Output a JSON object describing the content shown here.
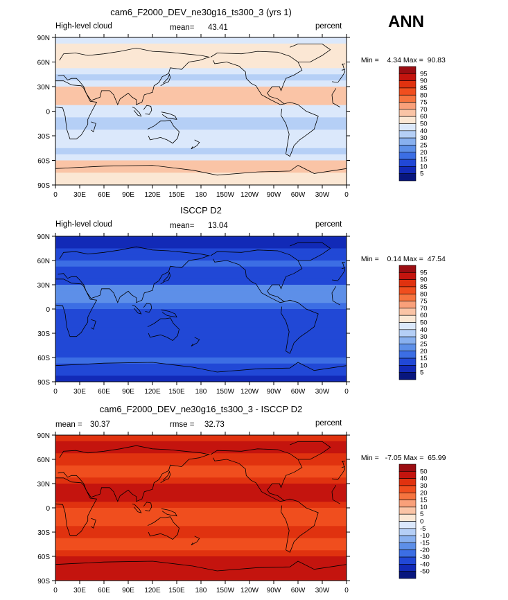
{
  "season": "ANN",
  "chart_data": [
    {
      "type": "heatmap",
      "title": "cam6_F2000_DEV_ne30g16_ts300_3 (yrs 1)",
      "left_label": "High-level cloud",
      "stat_label": "mean=",
      "stat_value": "43.41",
      "units": "percent",
      "min_label": "Min =",
      "min_value": "4.34",
      "max_label": "Max =",
      "max_value": "90.83",
      "x_ticks": [
        "0",
        "30E",
        "60E",
        "90E",
        "120E",
        "150E",
        "180",
        "150W",
        "120W",
        "90W",
        "60W",
        "30W",
        "0"
      ],
      "y_ticks": [
        "90N",
        "60N",
        "30N",
        "0",
        "30S",
        "60S",
        "90S"
      ],
      "xlim": [
        0,
        360
      ],
      "ylim": [
        -90,
        90
      ],
      "colorbar_levels": [
        "95",
        "90",
        "85",
        "80",
        "75",
        "70",
        "60",
        "50",
        "40",
        "30",
        "25",
        "20",
        "15",
        "10",
        "5"
      ],
      "colorbar_colors": [
        "#9b0d12",
        "#c4140e",
        "#e0320f",
        "#f04e1e",
        "#f6743f",
        "#f9a07a",
        "#fac4a6",
        "#fbe7d4",
        "#dbe8fb",
        "#b5cff6",
        "#88b0ef",
        "#5d8fe8",
        "#3c6ee4",
        "#2148d6",
        "#122ab7",
        "#08167e"
      ],
      "zonal_band_values": [
        45,
        55,
        55,
        52,
        50,
        40,
        38,
        45,
        62,
        68,
        62,
        48,
        40,
        35,
        38,
        42,
        45,
        40,
        35,
        45,
        60,
        62,
        55,
        50
      ]
    },
    {
      "type": "heatmap",
      "title": "ISCCP D2",
      "left_label": "High-level cloud",
      "stat_label": "mean=",
      "stat_value": "13.04",
      "units": "percent",
      "min_label": "Min =",
      "min_value": "0.14",
      "max_label": "Max =",
      "max_value": "47.54",
      "x_ticks": [
        "0",
        "30E",
        "60E",
        "90E",
        "120E",
        "150E",
        "180",
        "150W",
        "120W",
        "90W",
        "60W",
        "30W",
        "0"
      ],
      "y_ticks": [
        "90N",
        "60N",
        "30N",
        "0",
        "30S",
        "60S",
        "90S"
      ],
      "xlim": [
        0,
        360
      ],
      "ylim": [
        -90,
        90
      ],
      "colorbar_levels": [
        "95",
        "90",
        "85",
        "80",
        "75",
        "70",
        "60",
        "50",
        "40",
        "30",
        "25",
        "20",
        "15",
        "10",
        "5"
      ],
      "colorbar_colors": [
        "#9b0d12",
        "#c4140e",
        "#e0320f",
        "#f04e1e",
        "#f6743f",
        "#f9a07a",
        "#fac4a6",
        "#fbe7d4",
        "#dbe8fb",
        "#b5cff6",
        "#88b0ef",
        "#5d8fe8",
        "#3c6ee4",
        "#2148d6",
        "#122ab7",
        "#08167e"
      ],
      "zonal_band_values": [
        5,
        8,
        12,
        14,
        16,
        14,
        12,
        14,
        20,
        24,
        20,
        16,
        12,
        10,
        10,
        12,
        14,
        12,
        10,
        12,
        16,
        14,
        10,
        6
      ]
    },
    {
      "type": "heatmap",
      "title": "cam6_F2000_DEV_ne30g16_ts300_3 - ISCCP D2",
      "left_label": "",
      "stat_label": "mean =",
      "stat_value": "30.37",
      "stat2_label": "rmse =",
      "stat2_value": "32.73",
      "units": "percent",
      "min_label": "Min =",
      "min_value": "-7.05",
      "max_label": "Max =",
      "max_value": "65.99",
      "x_ticks": [
        "0",
        "30E",
        "60E",
        "90E",
        "120E",
        "150E",
        "180",
        "150W",
        "120W",
        "90W",
        "60W",
        "30W",
        "0"
      ],
      "y_ticks": [
        "90N",
        "60N",
        "30N",
        "0",
        "30S",
        "60S",
        "90S"
      ],
      "xlim": [
        0,
        360
      ],
      "ylim": [
        -90,
        90
      ],
      "colorbar_levels": [
        "50",
        "40",
        "30",
        "20",
        "15",
        "10",
        "5",
        "0",
        "-5",
        "-10",
        "-15",
        "-20",
        "-30",
        "-40",
        "-50"
      ],
      "colorbar_colors": [
        "#9b0d12",
        "#c4140e",
        "#e0320f",
        "#f04e1e",
        "#f6743f",
        "#f9a07a",
        "#fac4a6",
        "#fbe7d4",
        "#dbe8fb",
        "#b5cff6",
        "#88b0ef",
        "#5d8fe8",
        "#3c6ee4",
        "#2148d6",
        "#122ab7",
        "#08167e"
      ],
      "zonal_band_values": [
        38,
        46,
        42,
        38,
        34,
        28,
        26,
        30,
        42,
        44,
        42,
        32,
        28,
        24,
        28,
        30,
        32,
        28,
        24,
        32,
        44,
        46,
        44,
        42
      ]
    }
  ]
}
